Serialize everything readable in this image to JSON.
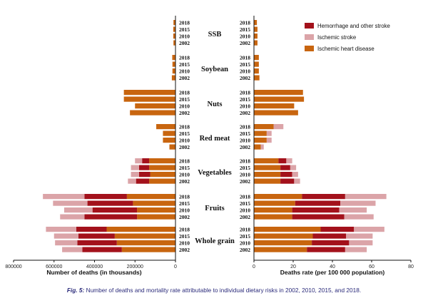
{
  "chart_data": {
    "type": "bar",
    "layout": "back-to-back stacked horizontal bars",
    "title": "",
    "categories": [
      "SSB",
      "Soybean",
      "Nuts",
      "Red meat",
      "Vegetables",
      "Fruits",
      "Whole grain"
    ],
    "years": [
      "2018",
      "2015",
      "2010",
      "2002"
    ],
    "series_names": [
      "Ischemic heart disease",
      "Hemorrhage and other stroke",
      "Ischemic stroke"
    ],
    "colors": {
      "Ischemic heart disease": "#c8650f",
      "Hemorrhage and other stroke": "#a3111b",
      "Ischemic stroke": "#dba4a8"
    },
    "legend": {
      "position": "top-right",
      "entries": [
        "Hemorrhage and other stroke",
        "Ischemic stroke",
        "Ischemic heart disease"
      ]
    },
    "deaths": {
      "xlabel": "Number of deaths (in thousands)",
      "xlim": [
        800000,
        0
      ],
      "ticks": [
        "800000",
        "600000",
        "400000",
        "200000",
        "0"
      ],
      "series": [
        {
          "name": "Ischemic heart disease",
          "values": {
            "SSB": [
              10000,
              11000,
              11000,
              10000
            ],
            "Soybean": [
              16000,
              15000,
              15000,
              18000
            ],
            "Nuts": [
              255000,
              255000,
              200000,
              225000
            ],
            "Red meat": [
              95000,
              62000,
              62000,
              30000
            ],
            "Vegetables": [
              130000,
              130000,
              125000,
              130000
            ],
            "Fruits": [
              240000,
              210000,
              190000,
              190000
            ],
            "Whole grain": [
              340000,
              300000,
              290000,
              265000
            ]
          }
        },
        {
          "name": "Hemorrhage and other stroke",
          "values": {
            "SSB": [
              0,
              0,
              0,
              0
            ],
            "Soybean": [
              0,
              0,
              0,
              0
            ],
            "Nuts": [
              0,
              0,
              0,
              0
            ],
            "Red meat": [
              0,
              0,
              0,
              0
            ],
            "Vegetables": [
              35000,
              50000,
              55000,
              65000
            ],
            "Fruits": [
              210000,
              225000,
              220000,
              260000
            ],
            "Whole grain": [
              150000,
              180000,
              195000,
              195000
            ]
          }
        },
        {
          "name": "Ischemic stroke",
          "values": {
            "SSB": [
              0,
              0,
              0,
              0
            ],
            "Soybean": [
              0,
              0,
              0,
              0
            ],
            "Nuts": [
              0,
              0,
              0,
              0
            ],
            "Red meat": [
              0,
              0,
              0,
              0
            ],
            "Vegetables": [
              35000,
              40000,
              40000,
              40000
            ],
            "Fruits": [
              205000,
              170000,
              140000,
              120000
            ],
            "Whole grain": [
              150000,
              120000,
              110000,
              100000
            ]
          }
        }
      ]
    },
    "rates": {
      "xlabel": "Deaths rate (per 100 000 population)",
      "xlim": [
        0,
        80
      ],
      "ticks": [
        "0",
        "20",
        "40",
        "60",
        "80"
      ],
      "series": [
        {
          "name": "Ischemic heart disease",
          "values": {
            "SSB": [
              1.5,
              1.8,
              1.8,
              1.8
            ],
            "Soybean": [
              2.5,
              2.5,
              2.5,
              2.8
            ],
            "Nuts": [
              25,
              25.5,
              20.5,
              22.5
            ],
            "Red meat": [
              10,
              6.5,
              6.5,
              3.5
            ],
            "Vegetables": [
              12.5,
              13.5,
              13.5,
              13.5
            ],
            "Fruits": [
              24.5,
              21,
              19.5,
              19.5
            ],
            "Whole grain": [
              34,
              30,
              29.5,
              27
            ]
          }
        },
        {
          "name": "Hemorrhage and other stroke",
          "values": {
            "SSB": [
              0,
              0,
              0,
              0
            ],
            "Soybean": [
              0,
              0,
              0,
              0
            ],
            "Nuts": [
              0,
              0,
              0,
              0
            ],
            "Red meat": [
              0,
              0,
              0,
              0
            ],
            "Vegetables": [
              4,
              5,
              6,
              7
            ],
            "Fruits": [
              22,
              23,
              24,
              26.5
            ],
            "Whole grain": [
              17,
              17,
              19,
              19.5
            ]
          }
        },
        {
          "name": "Ischemic stroke",
          "values": {
            "SSB": [
              0,
              0,
              0,
              0
            ],
            "Soybean": [
              0,
              0,
              0,
              0
            ],
            "Nuts": [
              0,
              0,
              0,
              0
            ],
            "Red meat": [
              5,
              2.5,
              2.5,
              1.5
            ],
            "Vegetables": [
              3,
              3,
              3,
              3
            ],
            "Fruits": [
              21,
              18,
              14,
              15
            ],
            "Whole grain": [
              15.5,
              13.5,
              12,
              11
            ]
          }
        }
      ]
    }
  },
  "caption": {
    "label": "Fig. 5:",
    "text": " Number of deaths and mortality rate attributable to individual dietary risks in 2002, 2010, 2015, and 2018."
  }
}
